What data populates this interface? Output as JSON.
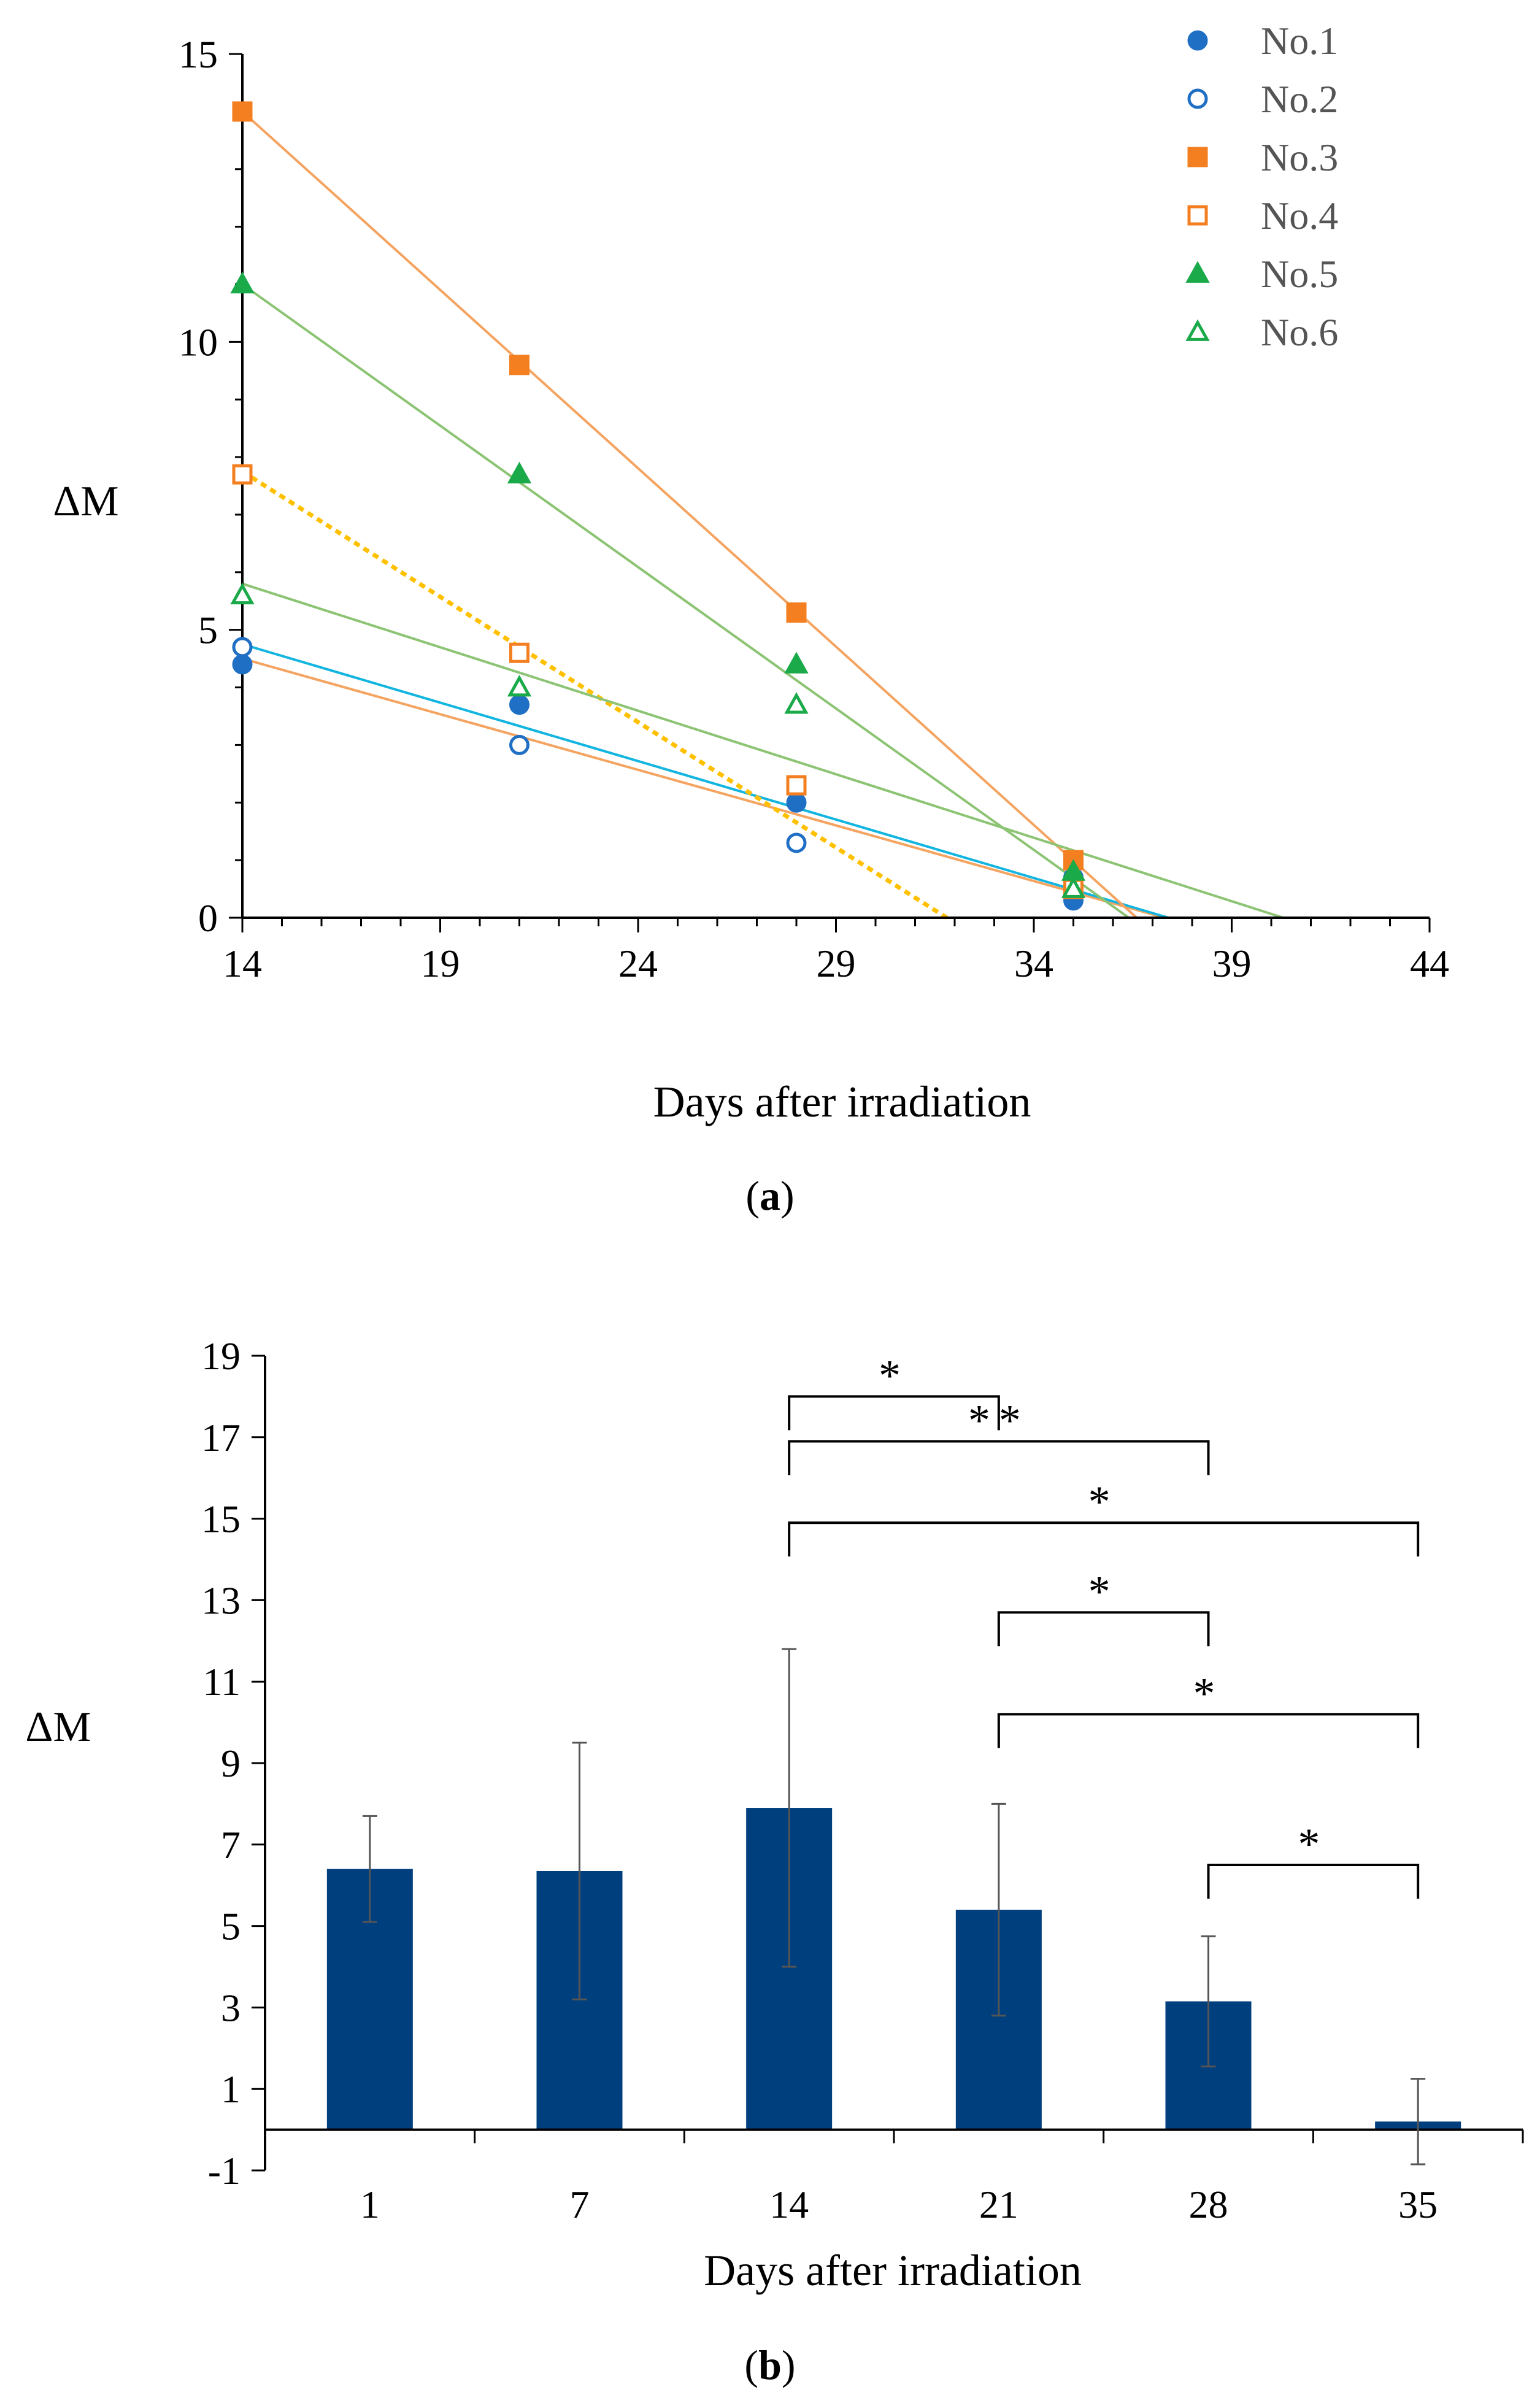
{
  "chart_data": [
    {
      "panel_label": "a",
      "type": "scatter",
      "title": "",
      "xlabel": "Days after irradiation",
      "ylabel": "ΔM",
      "xlim": [
        14,
        44
      ],
      "ylim": [
        0,
        15
      ],
      "xticks": [
        14,
        19,
        24,
        29,
        34,
        39,
        44
      ],
      "yticks": [
        0,
        5,
        10,
        15
      ],
      "legend_position": "top-right",
      "series": [
        {
          "name": "No.1",
          "marker": "circle",
          "filled": true,
          "color": "#1f6fc5",
          "x": [
            14,
            21,
            28,
            35
          ],
          "y": [
            4.4,
            3.7,
            2.0,
            0.3
          ],
          "fit": {
            "x": [
              14,
              37.3
            ],
            "y": [
              4.5,
              0
            ],
            "color": "#f4a460",
            "dashed": false
          }
        },
        {
          "name": "No.2",
          "marker": "circle",
          "filled": false,
          "color": "#1f6fc5",
          "x": [
            14,
            21,
            28,
            35
          ],
          "y": [
            4.7,
            3.0,
            1.3,
            0.7
          ],
          "fit": {
            "x": [
              14,
              37.4
            ],
            "y": [
              4.75,
              0
            ],
            "color": "#12b5e0",
            "dashed": false
          }
        },
        {
          "name": "No.3",
          "marker": "square",
          "filled": true,
          "color": "#f47f20",
          "x": [
            14,
            21,
            28,
            35
          ],
          "y": [
            14.0,
            9.6,
            5.3,
            1.0
          ],
          "fit": {
            "x": [
              14,
              36.6
            ],
            "y": [
              14.0,
              0
            ],
            "color": "#f4a460",
            "dashed": false
          }
        },
        {
          "name": "No.4",
          "marker": "square",
          "filled": false,
          "color": "#f47f20",
          "x": [
            14,
            21,
            28,
            35
          ],
          "y": [
            7.7,
            4.6,
            2.3,
            0.5
          ],
          "fit": {
            "x": [
              14,
              31.8
            ],
            "y": [
              7.75,
              0
            ],
            "color": "#ffc000",
            "dashed": true
          }
        },
        {
          "name": "No.5",
          "marker": "triangle",
          "filled": true,
          "color": "#1aaa4a",
          "x": [
            14,
            21,
            28,
            35
          ],
          "y": [
            11.0,
            7.7,
            4.4,
            0.8
          ],
          "fit": {
            "x": [
              14,
              36.4
            ],
            "y": [
              11.0,
              0
            ],
            "color": "#8cc474",
            "dashed": false
          }
        },
        {
          "name": "No.6",
          "marker": "triangle",
          "filled": false,
          "color": "#1aaa4a",
          "x": [
            14,
            21,
            28,
            35
          ],
          "y": [
            5.6,
            4.0,
            3.7,
            0.5
          ],
          "fit": {
            "x": [
              14,
              40.3
            ],
            "y": [
              5.8,
              0
            ],
            "color": "#8cc474",
            "dashed": false
          }
        }
      ]
    },
    {
      "panel_label": "b",
      "type": "bar",
      "title": "",
      "xlabel": "Days after irradiation",
      "ylabel": "ΔM",
      "categories": [
        "1",
        "7",
        "14",
        "21",
        "28",
        "35"
      ],
      "values": [
        6.4,
        6.35,
        7.9,
        5.4,
        3.15,
        0.2
      ],
      "errors": [
        1.3,
        3.15,
        3.9,
        2.6,
        1.6,
        1.05
      ],
      "ylim": [
        -1,
        19
      ],
      "yticks": [
        -1,
        1,
        3,
        5,
        7,
        9,
        11,
        13,
        15,
        17,
        19
      ],
      "bar_color": "#003f7d",
      "significance": [
        {
          "from": "14",
          "to": "21",
          "y": 18.0,
          "label": "*"
        },
        {
          "from": "14",
          "to": "28",
          "y": 16.9,
          "label": "**"
        },
        {
          "from": "14",
          "to": "35",
          "y": 14.9,
          "label": "*"
        },
        {
          "from": "21",
          "to": "28",
          "y": 12.7,
          "label": "*"
        },
        {
          "from": "21",
          "to": "35",
          "y": 10.2,
          "label": "*"
        },
        {
          "from": "28",
          "to": "35",
          "y": 6.5,
          "label": "*"
        }
      ]
    }
  ]
}
